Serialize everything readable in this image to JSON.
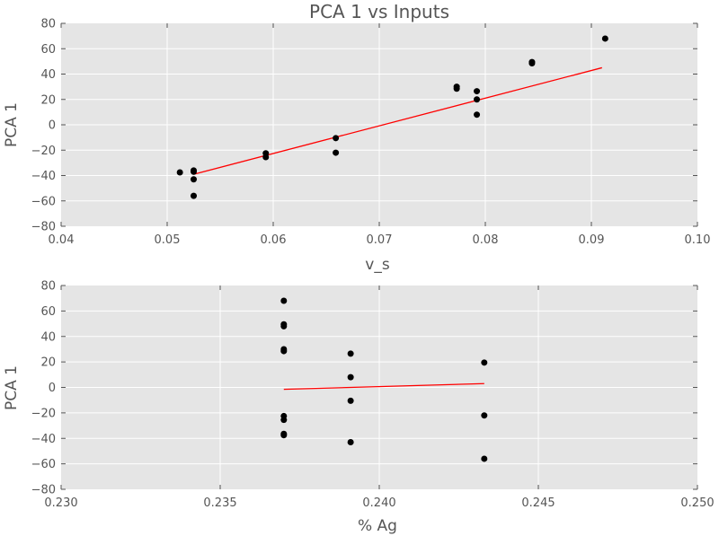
{
  "chart_data": [
    {
      "type": "scatter",
      "title": "PCA 1 vs Inputs",
      "xlabel": "v_s",
      "ylabel": "PCA 1",
      "xlim": [
        0.04,
        0.1
      ],
      "ylim": [
        -80,
        80
      ],
      "xticks": [
        "0.04",
        "0.05",
        "0.06",
        "0.07",
        "0.08",
        "0.09",
        "0.10"
      ],
      "yticks": [
        "−80",
        "−60",
        "−40",
        "−20",
        "0",
        "20",
        "40",
        "60",
        "80"
      ],
      "grid": true,
      "colors": {
        "points": "#000000",
        "fit": "#ff0000",
        "background": "#e5e5e5",
        "grid": "#ffffff"
      },
      "points": [
        {
          "x": 0.0512,
          "y": -37.5
        },
        {
          "x": 0.0525,
          "y": -36
        },
        {
          "x": 0.0525,
          "y": -37
        },
        {
          "x": 0.0525,
          "y": -43
        },
        {
          "x": 0.0525,
          "y": -56
        },
        {
          "x": 0.0593,
          "y": -22.5
        },
        {
          "x": 0.0593,
          "y": -25.5
        },
        {
          "x": 0.0659,
          "y": -10.5
        },
        {
          "x": 0.0659,
          "y": -22
        },
        {
          "x": 0.0773,
          "y": 28.5
        },
        {
          "x": 0.0773,
          "y": 30
        },
        {
          "x": 0.0792,
          "y": 26.5
        },
        {
          "x": 0.0792,
          "y": 20
        },
        {
          "x": 0.0792,
          "y": 8
        },
        {
          "x": 0.0844,
          "y": 48.5
        },
        {
          "x": 0.0844,
          "y": 49.5
        },
        {
          "x": 0.0913,
          "y": 68
        }
      ],
      "fit_line": {
        "x": [
          0.0525,
          0.091
        ],
        "y": [
          -39,
          45
        ]
      }
    },
    {
      "type": "scatter",
      "title": "",
      "xlabel": "% Ag",
      "ylabel": "PCA 1",
      "xlim": [
        0.23,
        0.25
      ],
      "ylim": [
        -80,
        80
      ],
      "xticks": [
        "0.230",
        "0.235",
        "0.240",
        "0.245",
        "0.250"
      ],
      "yticks": [
        "−80",
        "−60",
        "−40",
        "−20",
        "0",
        "20",
        "40",
        "60",
        "80"
      ],
      "grid": true,
      "colors": {
        "points": "#000000",
        "fit": "#ff0000",
        "background": "#e5e5e5",
        "grid": "#ffffff"
      },
      "points": [
        {
          "x": 0.237,
          "y": 68
        },
        {
          "x": 0.237,
          "y": 48
        },
        {
          "x": 0.237,
          "y": 49.5
        },
        {
          "x": 0.237,
          "y": 28.5
        },
        {
          "x": 0.237,
          "y": 30
        },
        {
          "x": 0.237,
          "y": -22.5
        },
        {
          "x": 0.237,
          "y": -25.5
        },
        {
          "x": 0.237,
          "y": -36.5
        },
        {
          "x": 0.237,
          "y": -37.5
        },
        {
          "x": 0.2391,
          "y": 26.5
        },
        {
          "x": 0.2391,
          "y": 8
        },
        {
          "x": 0.2391,
          "y": -10.5
        },
        {
          "x": 0.2391,
          "y": -43
        },
        {
          "x": 0.2433,
          "y": 19.5
        },
        {
          "x": 0.2433,
          "y": -22
        },
        {
          "x": 0.2433,
          "y": -56
        }
      ],
      "fit_line": {
        "x": [
          0.237,
          0.2433
        ],
        "y": [
          -1.5,
          3
        ]
      }
    }
  ]
}
